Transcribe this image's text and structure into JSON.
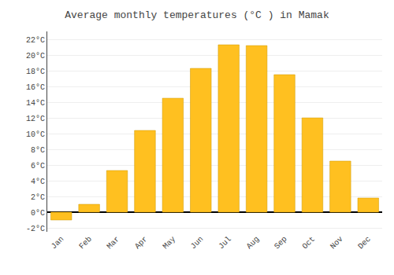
{
  "chart_data": {
    "type": "bar",
    "title": "Average monthly temperatures (°C ) in Mamak",
    "categories": [
      "Jan",
      "Feb",
      "Mar",
      "Apr",
      "May",
      "Jun",
      "Jul",
      "Aug",
      "Sep",
      "Oct",
      "Nov",
      "Dec"
    ],
    "values": [
      -1.0,
      1.0,
      5.3,
      10.4,
      14.5,
      18.3,
      21.3,
      21.2,
      17.5,
      12.0,
      6.5,
      1.8
    ],
    "color": "#FFC020",
    "ylim": [
      -2.5,
      23.0
    ],
    "yticks": [
      {
        "value": -2,
        "label": "-2°C"
      },
      {
        "value": 0,
        "label": "0°C"
      },
      {
        "value": 2,
        "label": "2°C"
      },
      {
        "value": 4,
        "label": "4°C"
      },
      {
        "value": 6,
        "label": "6°C"
      },
      {
        "value": 8,
        "label": "8°C"
      },
      {
        "value": 10,
        "label": "10°C"
      },
      {
        "value": 12,
        "label": "12°C"
      },
      {
        "value": 14,
        "label": "14°C"
      },
      {
        "value": 16,
        "label": "16°C"
      },
      {
        "value": 18,
        "label": "18°C"
      },
      {
        "value": 20,
        "label": "20°C"
      },
      {
        "value": 22,
        "label": "22°C"
      }
    ],
    "grid": true
  }
}
